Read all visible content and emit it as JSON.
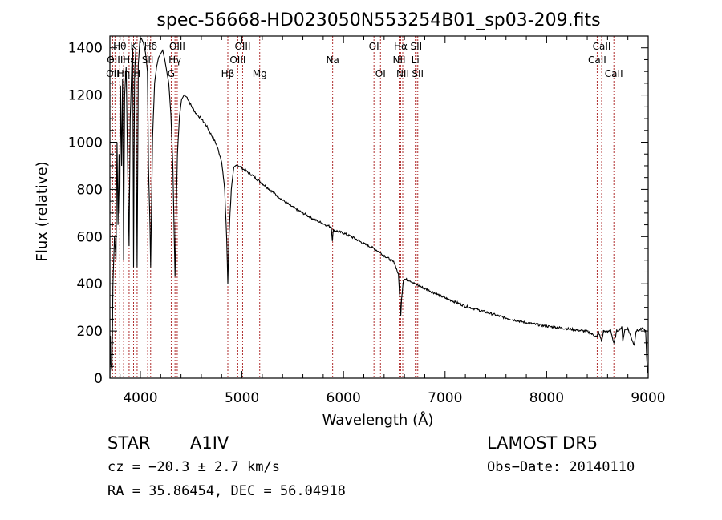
{
  "chart_data": {
    "type": "line",
    "title": "spec-56668-HD023050N553254B01_sp03-209.fits",
    "xlabel": "Wavelength (Å)",
    "ylabel": "Flux (relative)",
    "xlim": [
      3700,
      9000
    ],
    "ylim": [
      0,
      1450
    ],
    "xticks": [
      4000,
      5000,
      6000,
      7000,
      8000,
      9000
    ],
    "yticks": [
      0,
      200,
      400,
      600,
      800,
      1000,
      1200,
      1400
    ],
    "grid": false,
    "line_color": "#000000",
    "marker_color": "#b03030",
    "spectrum": [
      [
        3700,
        0
      ],
      [
        3705,
        180
      ],
      [
        3710,
        60
      ],
      [
        3720,
        30
      ],
      [
        3730,
        400
      ],
      [
        3745,
        600
      ],
      [
        3760,
        500
      ],
      [
        3770,
        1000
      ],
      [
        3780,
        650
      ],
      [
        3790,
        950
      ],
      [
        3797,
        700
      ],
      [
        3805,
        1240
      ],
      [
        3815,
        900
      ],
      [
        3825,
        1270
      ],
      [
        3835,
        500
      ],
      [
        3845,
        1200
      ],
      [
        3860,
        1320
      ],
      [
        3875,
        900
      ],
      [
        3889,
        560
      ],
      [
        3900,
        1100
      ],
      [
        3915,
        1320
      ],
      [
        3925,
        1400
      ],
      [
        3933,
        470
      ],
      [
        3943,
        1300
      ],
      [
        3955,
        1390
      ],
      [
        3968,
        470
      ],
      [
        3980,
        1330
      ],
      [
        3995,
        1430
      ],
      [
        4010,
        1440
      ],
      [
        4030,
        1420
      ],
      [
        4050,
        1380
      ],
      [
        4070,
        1300
      ],
      [
        4080,
        900
      ],
      [
        4095,
        640
      ],
      [
        4101,
        470
      ],
      [
        4107,
        640
      ],
      [
        4120,
        1020
      ],
      [
        4140,
        1250
      ],
      [
        4160,
        1320
      ],
      [
        4180,
        1360
      ],
      [
        4200,
        1375
      ],
      [
        4220,
        1390
      ],
      [
        4240,
        1350
      ],
      [
        4260,
        1300
      ],
      [
        4280,
        1250
      ],
      [
        4300,
        1120
      ],
      [
        4320,
        900
      ],
      [
        4333,
        620
      ],
      [
        4341,
        430
      ],
      [
        4349,
        620
      ],
      [
        4365,
        950
      ],
      [
        4385,
        1110
      ],
      [
        4405,
        1180
      ],
      [
        4430,
        1200
      ],
      [
        4460,
        1190
      ],
      [
        4500,
        1155
      ],
      [
        4550,
        1120
      ],
      [
        4600,
        1100
      ],
      [
        4650,
        1070
      ],
      [
        4700,
        1030
      ],
      [
        4750,
        990
      ],
      [
        4800,
        920
      ],
      [
        4830,
        800
      ],
      [
        4850,
        590
      ],
      [
        4861,
        400
      ],
      [
        4872,
        600
      ],
      [
        4895,
        800
      ],
      [
        4920,
        890
      ],
      [
        4950,
        905
      ],
      [
        5000,
        890
      ],
      [
        5100,
        860
      ],
      [
        5200,
        825
      ],
      [
        5300,
        790
      ],
      [
        5400,
        755
      ],
      [
        5500,
        725
      ],
      [
        5600,
        700
      ],
      [
        5700,
        675
      ],
      [
        5800,
        655
      ],
      [
        5880,
        640
      ],
      [
        5890,
        585
      ],
      [
        5900,
        628
      ],
      [
        6000,
        615
      ],
      [
        6100,
        595
      ],
      [
        6200,
        570
      ],
      [
        6300,
        550
      ],
      [
        6400,
        520
      ],
      [
        6500,
        490
      ],
      [
        6540,
        440
      ],
      [
        6555,
        340
      ],
      [
        6563,
        260
      ],
      [
        6572,
        340
      ],
      [
        6590,
        420
      ],
      [
        6650,
        415
      ],
      [
        6700,
        400
      ],
      [
        6800,
        380
      ],
      [
        6900,
        360
      ],
      [
        7000,
        340
      ],
      [
        7200,
        305
      ],
      [
        7400,
        280
      ],
      [
        7600,
        255
      ],
      [
        7800,
        235
      ],
      [
        8000,
        220
      ],
      [
        8200,
        210
      ],
      [
        8400,
        198
      ],
      [
        8498,
        175
      ],
      [
        8510,
        198
      ],
      [
        8542,
        155
      ],
      [
        8560,
        200
      ],
      [
        8600,
        195
      ],
      [
        8630,
        205
      ],
      [
        8662,
        145
      ],
      [
        8690,
        200
      ],
      [
        8740,
        215
      ],
      [
        8750,
        160
      ],
      [
        8770,
        205
      ],
      [
        8800,
        210
      ],
      [
        8862,
        140
      ],
      [
        8880,
        200
      ],
      [
        8920,
        205
      ],
      [
        8950,
        210
      ],
      [
        8975,
        200
      ],
      [
        8985,
        90
      ],
      [
        8995,
        20
      ]
    ],
    "lines": [
      {
        "wl": 3727,
        "label": "OII",
        "row": 3
      },
      {
        "wl": 3750,
        "label": "OIII",
        "row": 2
      },
      {
        "wl": 3797,
        "label": "Hθ",
        "row": 1
      },
      {
        "wl": 3835,
        "label": "Hη",
        "row": 3
      },
      {
        "wl": 3889,
        "label": "Hε",
        "row": 2
      },
      {
        "wl": 3933,
        "label": "K",
        "row": 1
      },
      {
        "wl": 3968,
        "label": "H",
        "row": 3
      },
      {
        "wl": 4072,
        "label": "SII",
        "row": 2
      },
      {
        "wl": 4101,
        "label": "Hδ",
        "row": 1
      },
      {
        "wl": 4304,
        "label": "G",
        "row": 3
      },
      {
        "wl": 4341,
        "label": "Hγ",
        "row": 2
      },
      {
        "wl": 4363,
        "label": "OIII",
        "row": 1
      },
      {
        "wl": 4861,
        "label": "Hβ",
        "row": 3
      },
      {
        "wl": 4959,
        "label": "OIII",
        "row": 2
      },
      {
        "wl": 5007,
        "label": "OIII",
        "row": 1
      },
      {
        "wl": 5175,
        "label": "Mg",
        "row": 3
      },
      {
        "wl": 5893,
        "label": "Na",
        "row": 2
      },
      {
        "wl": 6300,
        "label": "OI",
        "row": 1
      },
      {
        "wl": 6364,
        "label": "OI",
        "row": 3
      },
      {
        "wl": 6548,
        "label": "NII",
        "row": 2
      },
      {
        "wl": 6563,
        "label": "Hα",
        "row": 1
      },
      {
        "wl": 6583,
        "label": "NII",
        "row": 3
      },
      {
        "wl": 6707,
        "label": "Li",
        "row": 2
      },
      {
        "wl": 6716,
        "label": "SII",
        "row": 1
      },
      {
        "wl": 6731,
        "label": "SII",
        "row": 3
      },
      {
        "wl": 8498,
        "label": "CaII",
        "row": 2
      },
      {
        "wl": 8542,
        "label": "CaII",
        "row": 1
      },
      {
        "wl": 8662,
        "label": "CaII",
        "row": 3
      }
    ]
  },
  "info": {
    "class_label": "STAR",
    "subclass": "A1IV",
    "survey": "LAMOST DR5",
    "cz": "cz = −20.3 ± 2.7 km/s",
    "obs_date": "Obs−Date: 20140110",
    "coords": "RA =  35.86454, DEC =  56.04918"
  }
}
